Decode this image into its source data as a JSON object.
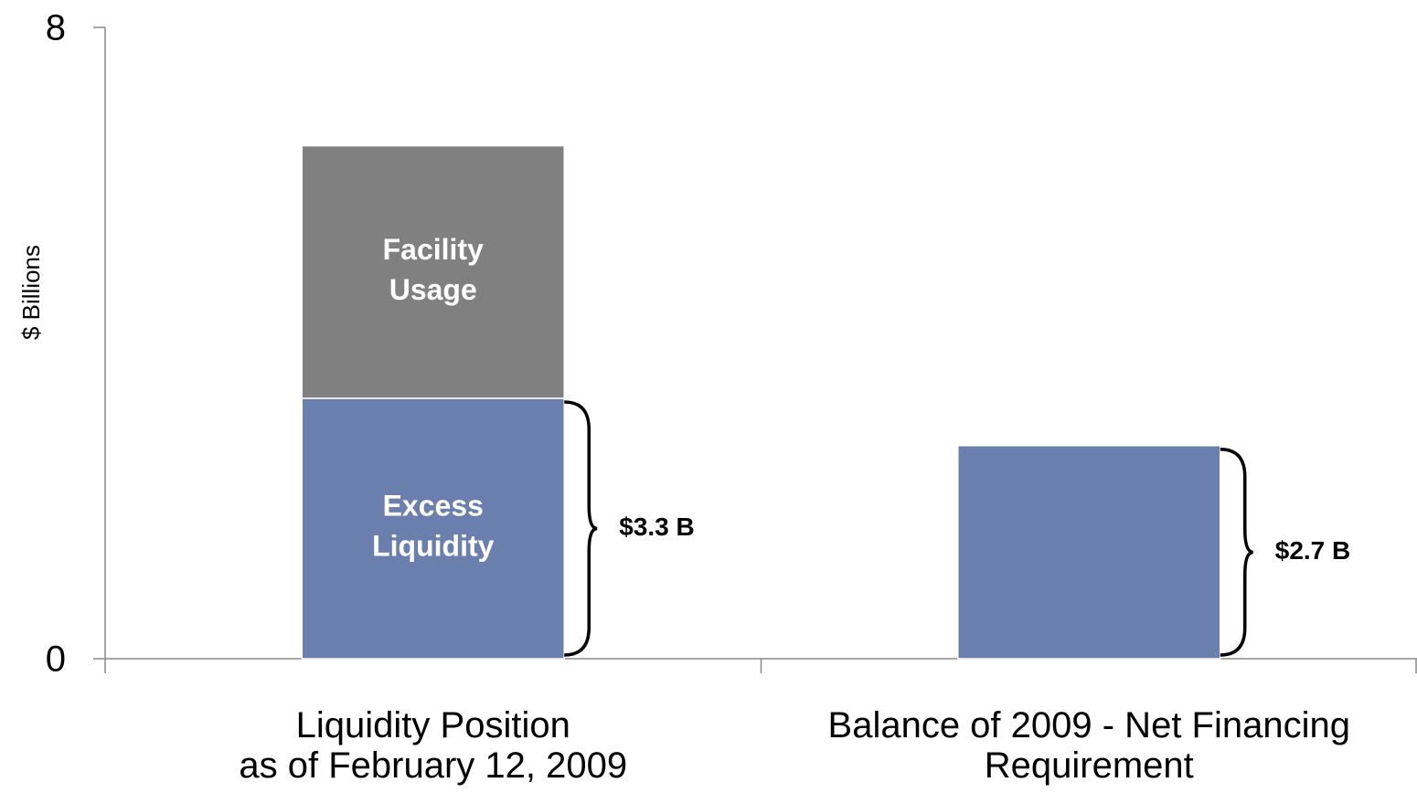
{
  "chart_data": {
    "type": "stacked_bar",
    "y_label": "$ Billions",
    "categories": [
      "Liquidity Position\nas of February 12, 2009",
      "Balance of 2009 - Net Financing\nRequirement"
    ],
    "series": [
      {
        "name": "Excess Liquidity",
        "color": "#6a7fae",
        "values": [
          3.3,
          2.7
        ],
        "value_labels": [
          "$3.3 B",
          "$2.7 B"
        ]
      },
      {
        "name": "Facility Usage",
        "color": "#808080",
        "values": [
          3.2,
          null
        ]
      }
    ],
    "ylim": [
      0,
      8
    ],
    "yticks": [
      0,
      8
    ],
    "grid": false
  }
}
